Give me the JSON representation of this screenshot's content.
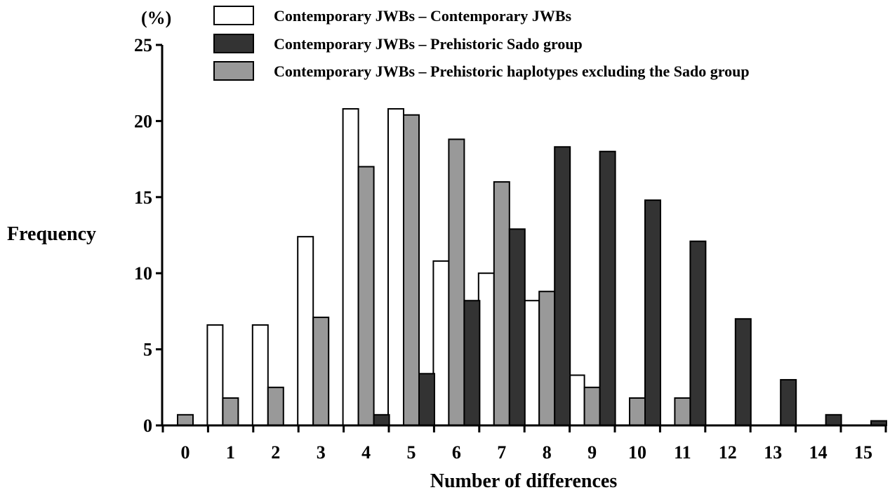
{
  "chart_data": {
    "type": "bar",
    "xlabel": "Number of differences",
    "ylabel": "Frequency",
    "yunit": "(%)",
    "ylim": [
      0,
      25
    ],
    "yticks": [
      0,
      5,
      10,
      15,
      20,
      25
    ],
    "categories": [
      "0",
      "1",
      "2",
      "3",
      "4",
      "5",
      "6",
      "7",
      "8",
      "9",
      "10",
      "11",
      "12",
      "13",
      "14",
      "15"
    ],
    "legend_position": "top",
    "grid": false,
    "series": [
      {
        "name": "Contemporary JWBs – Contemporary JWBs",
        "color": "#ffffff",
        "values": [
          0,
          6.6,
          6.6,
          12.4,
          20.8,
          20.8,
          10.8,
          10.0,
          8.2,
          3.3,
          0,
          0,
          0,
          0,
          0,
          0
        ]
      },
      {
        "name": "Contemporary JWBs – Prehistoric haplotypes excluding the Sado group",
        "color": "#999999",
        "values": [
          0.7,
          1.8,
          2.5,
          7.1,
          17.0,
          20.4,
          18.8,
          16.0,
          8.8,
          2.5,
          1.8,
          1.8,
          0,
          0,
          0,
          0
        ]
      },
      {
        "name": "Contemporary JWBs – Prehistoric Sado group",
        "color": "#333333",
        "values": [
          0,
          0,
          0,
          0,
          0.7,
          3.4,
          8.2,
          12.9,
          18.3,
          18.0,
          14.8,
          12.1,
          7.0,
          3.0,
          0.7,
          0.3
        ]
      }
    ],
    "legend_order": [
      0,
      2,
      1
    ]
  }
}
